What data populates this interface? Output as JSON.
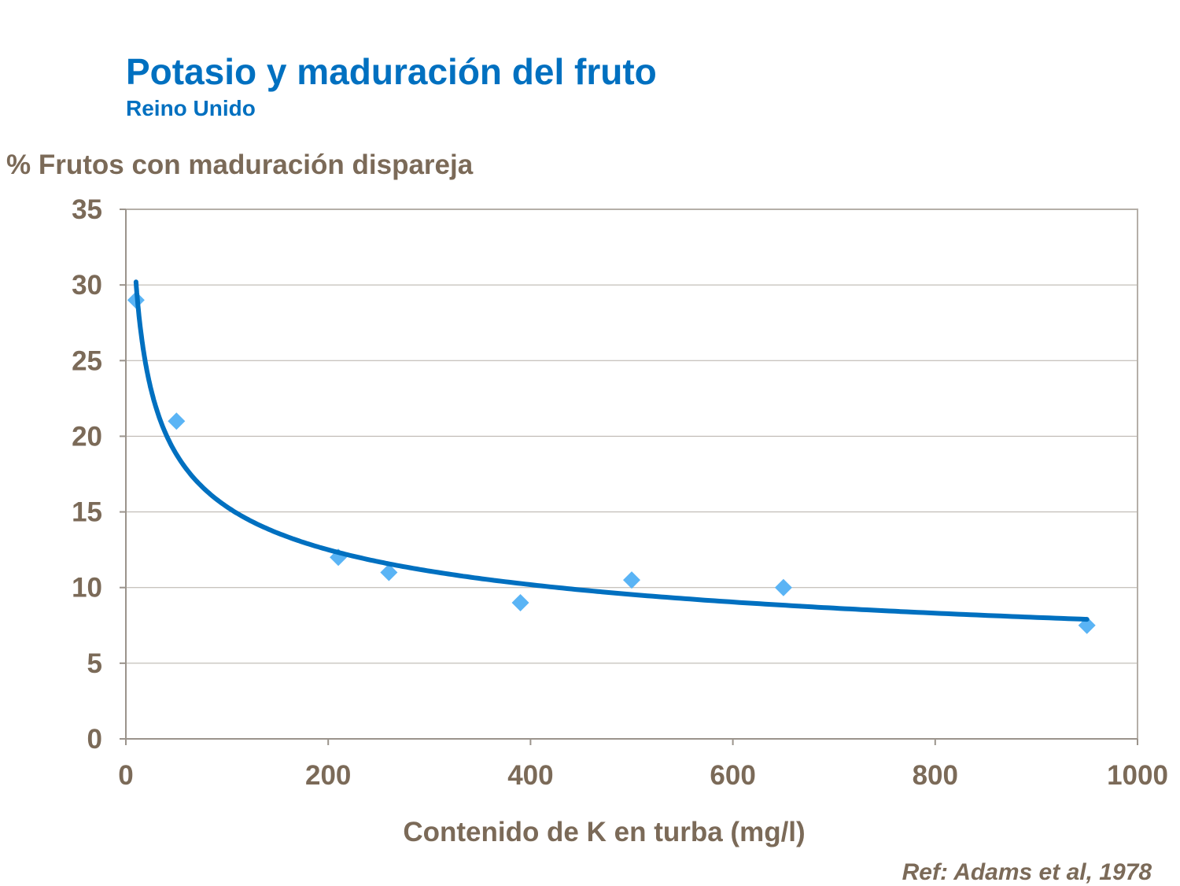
{
  "chart_data": {
    "type": "scatter",
    "title": "Potasio y maduración del fruto",
    "subtitle": "Reino Unido",
    "ylabel": "% Frutos con maduración dispareja",
    "xlabel": "Contenido de K en turba (mg/l)",
    "xlim": [
      0,
      1000
    ],
    "ylim": [
      0,
      35
    ],
    "xticks": [
      0,
      200,
      400,
      600,
      800,
      1000
    ],
    "yticks": [
      0,
      5,
      10,
      15,
      20,
      25,
      30,
      35
    ],
    "grid": "horizontal",
    "points": [
      {
        "x": 10,
        "y": 29
      },
      {
        "x": 50,
        "y": 21
      },
      {
        "x": 210,
        "y": 12
      },
      {
        "x": 260,
        "y": 11
      },
      {
        "x": 390,
        "y": 9
      },
      {
        "x": 500,
        "y": 10.5
      },
      {
        "x": 650,
        "y": 10
      },
      {
        "x": 950,
        "y": 7.5
      }
    ],
    "trendline": {
      "type": "power",
      "a": 59.5,
      "b": -0.2945,
      "x_range": [
        10,
        950
      ]
    },
    "colors": {
      "points": "#5AB4F5",
      "trendline": "#0070C0",
      "text": "#7B6A58",
      "title": "#0070C0"
    },
    "annotation": "Ref: Adams et al, 1978"
  }
}
